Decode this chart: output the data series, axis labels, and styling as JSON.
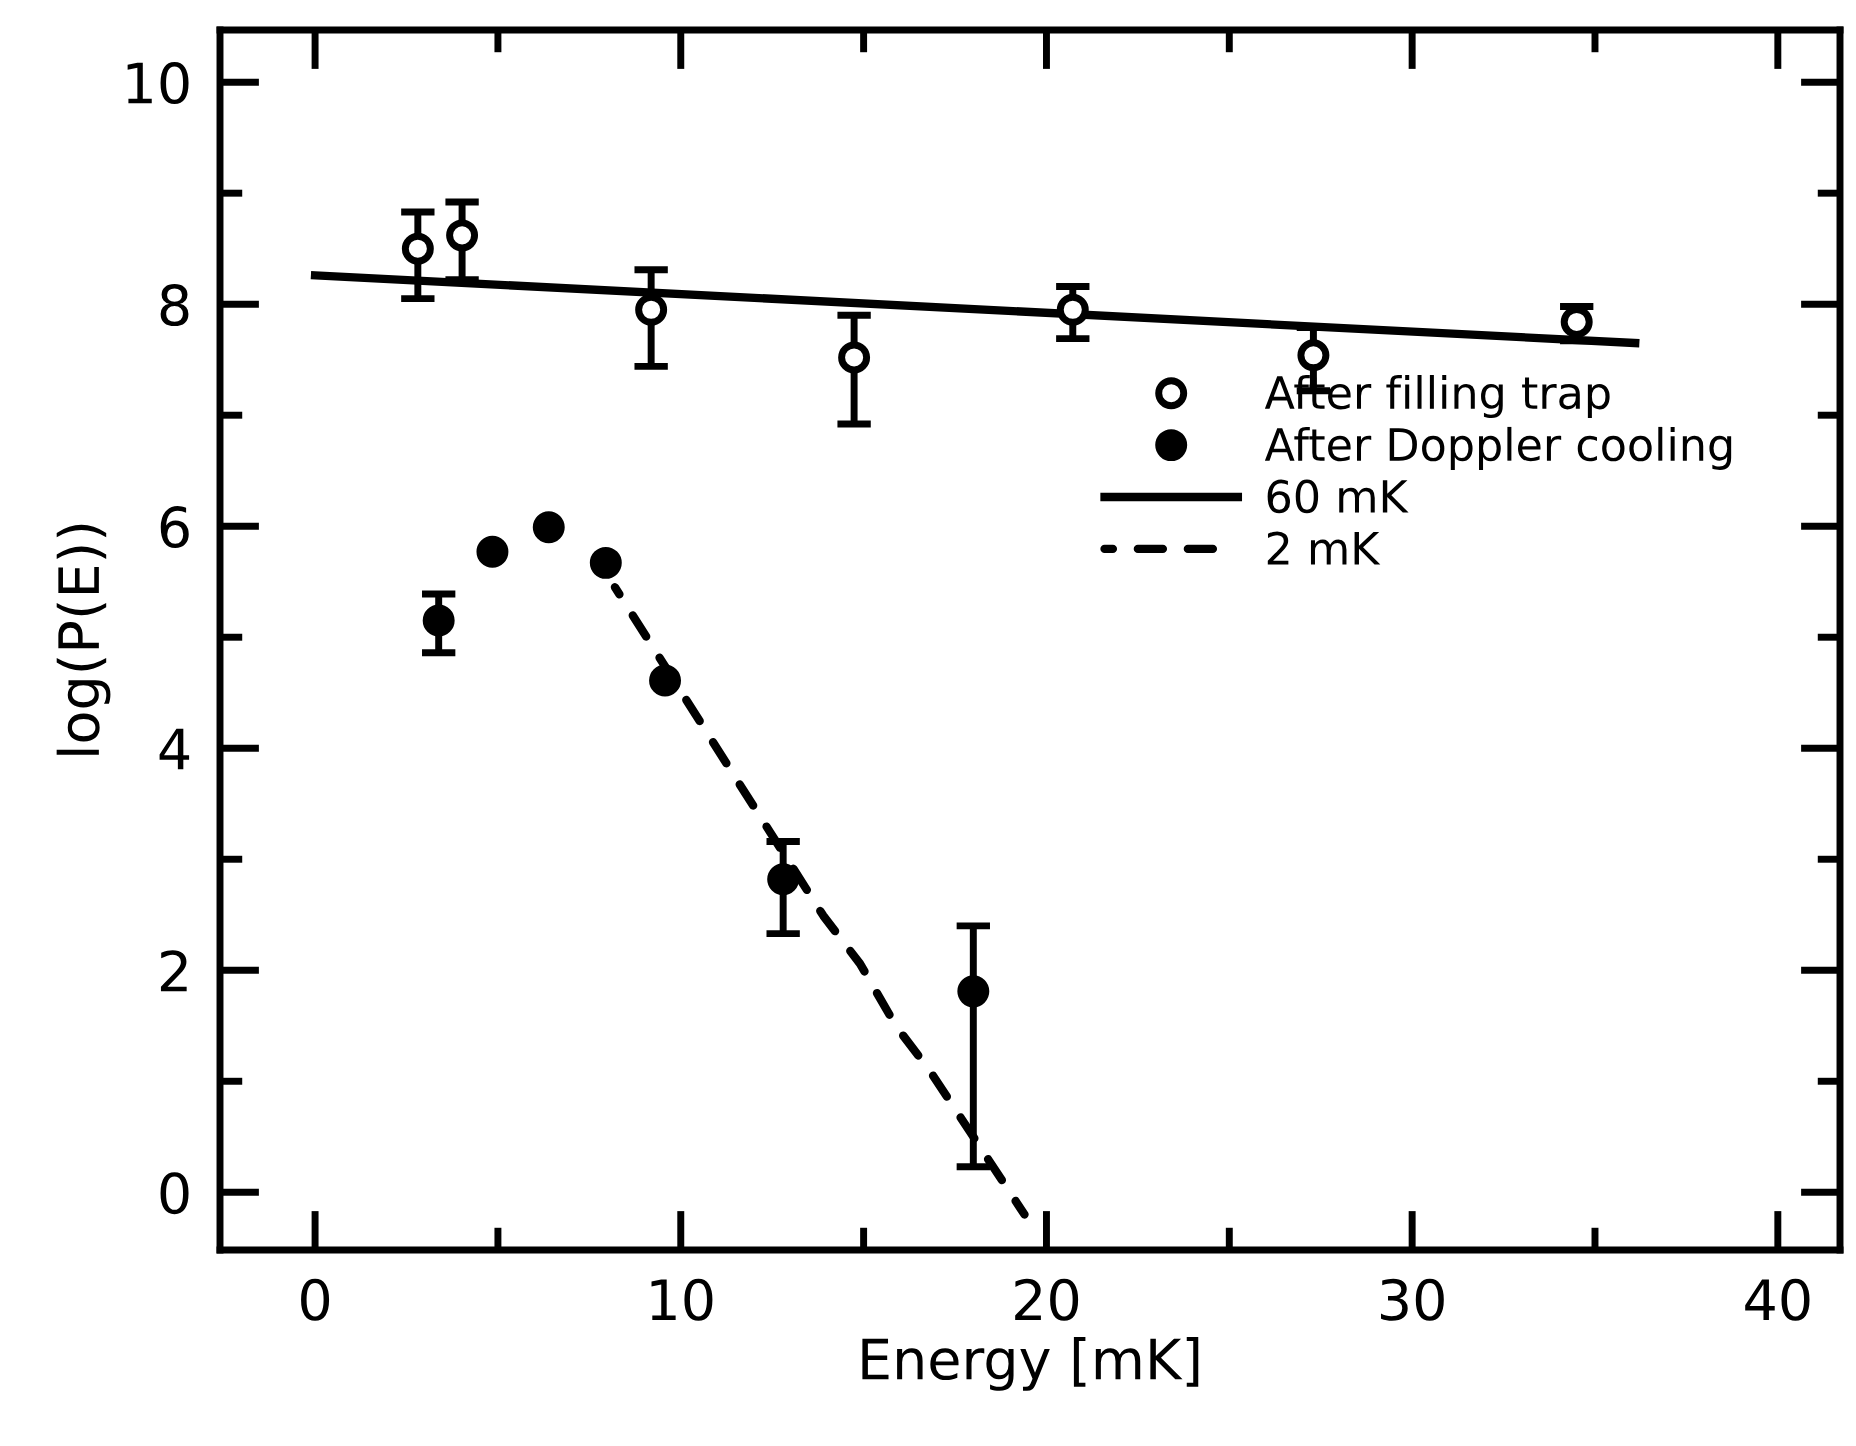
{
  "chart_data": {
    "type": "scatter",
    "xlabel": "Energy [mK]",
    "ylabel": "log(P(E))",
    "xlim": [
      -2.6,
      41.7
    ],
    "ylim": [
      -0.52,
      10.47
    ],
    "xticks": [
      0,
      10,
      20,
      30,
      40
    ],
    "yticks": [
      0,
      2,
      4,
      6,
      8,
      10
    ],
    "grid": false,
    "legend": "right",
    "series": [
      {
        "name": "After filling trap",
        "marker": "circle",
        "color": "#000000",
        "x": [
          2.81,
          4.02,
          9.19,
          14.74,
          20.72,
          27.3,
          34.5
        ],
        "values": [
          8.5,
          8.62,
          7.95,
          7.52,
          7.95,
          7.54,
          7.84
        ],
        "errors": [
          [
            8.05,
            8.83
          ],
          [
            8.22,
            8.92
          ],
          [
            7.44,
            8.31
          ],
          [
            6.92,
            7.9
          ],
          [
            7.69,
            8.16
          ],
          [
            7.22,
            7.79
          ],
          [
            7.67,
            7.98
          ]
        ]
      },
      {
        "name": "After Doppler cooling",
        "marker": "circle",
        "color": "#000000",
        "x": [
          3.38,
          4.85,
          6.39,
          7.95,
          9.57,
          12.8,
          18.0
        ],
        "values": [
          5.15,
          5.77,
          5.99,
          5.67,
          4.61,
          2.82,
          1.81
        ],
        "errors": [
          [
            4.86,
            5.39
          ],
          null,
          null,
          null,
          null,
          [
            2.33,
            3.16
          ],
          [
            0.23,
            2.4
          ]
        ]
      },
      {
        "name": "60 mK",
        "type": "line",
        "line_style": "solid",
        "color": "#000000",
        "x": [
          0,
          36.1
        ],
        "values": [
          8.26,
          7.65
        ]
      },
      {
        "name": "2 mK",
        "type": "line",
        "line_style": "dashed",
        "color": "#000000",
        "x": [
          8.2,
          10.7,
          11.6,
          13.9,
          14.9,
          15.9,
          16.8,
          19.4
        ],
        "values": [
          5.45,
          4.15,
          3.68,
          2.49,
          2.06,
          1.49,
          1.1,
          -0.2
        ]
      }
    ]
  }
}
